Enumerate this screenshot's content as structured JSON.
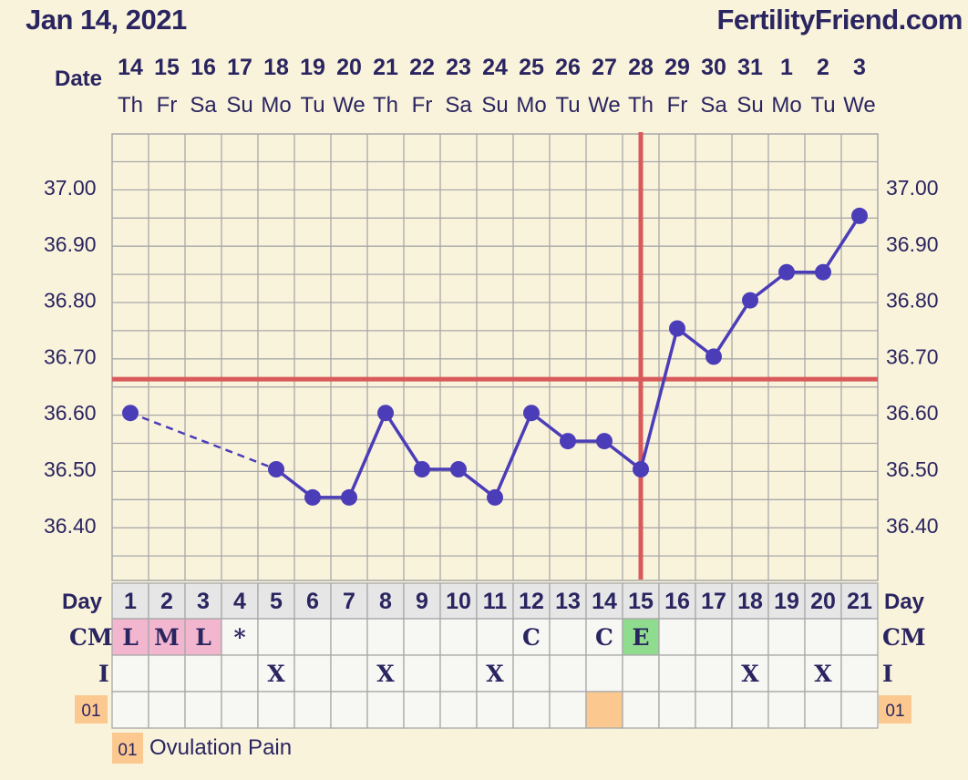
{
  "header": {
    "title": "Jan 14, 2021",
    "brand": "FertilityFriend.com"
  },
  "labels": {
    "date": "Date",
    "day": "Day",
    "cm": "CM",
    "intercourse": "I",
    "custom_code": "01"
  },
  "legend": {
    "code": "01",
    "label": "Ovulation Pain"
  },
  "colors": {
    "background": "#faf3dc",
    "grid": "#a8a8a8",
    "line": "#4b3db8",
    "coverline": "#d85a5a",
    "menstrual_cell": "#f2b6cf",
    "fertile_cell": "#8fdc8f",
    "custom_cell": "#fbc990",
    "day_row": "#e6e6e6",
    "cell_bg": "#f7f7f4"
  },
  "chart_data": {
    "type": "line",
    "title": "",
    "xlabel": "",
    "ylabel": "",
    "ylim": [
      36.32,
      37.1
    ],
    "yticks": [
      "37.00",
      "36.90",
      "36.80",
      "36.70",
      "36.60",
      "36.50",
      "36.40"
    ],
    "dates": [
      "14",
      "15",
      "16",
      "17",
      "18",
      "19",
      "20",
      "21",
      "22",
      "23",
      "24",
      "25",
      "26",
      "27",
      "28",
      "29",
      "30",
      "31",
      "1",
      "2",
      "3"
    ],
    "weekdays": [
      "Th",
      "Fr",
      "Sa",
      "Su",
      "Mo",
      "Tu",
      "We",
      "Th",
      "Fr",
      "Sa",
      "Su",
      "Mo",
      "Tu",
      "We",
      "Th",
      "Fr",
      "Sa",
      "Su",
      "Mo",
      "Tu",
      "We"
    ],
    "cycle_days": [
      "1",
      "2",
      "3",
      "4",
      "5",
      "6",
      "7",
      "8",
      "9",
      "10",
      "11",
      "12",
      "13",
      "14",
      "15",
      "16",
      "17",
      "18",
      "19",
      "20",
      "21"
    ],
    "series": [
      {
        "values": [
          36.6,
          null,
          null,
          null,
          36.5,
          36.45,
          36.45,
          36.6,
          36.5,
          36.5,
          36.45,
          36.6,
          36.55,
          36.55,
          36.5,
          36.75,
          36.7,
          36.8,
          36.85,
          36.85,
          36.95
        ]
      }
    ],
    "coverline": 36.66,
    "ovulation_day": 15,
    "cm": [
      "L",
      "M",
      "L",
      "*",
      "",
      "",
      "",
      "",
      "",
      "",
      "",
      "C",
      "",
      "C",
      "E",
      "",
      "",
      "",
      "",
      "",
      ""
    ],
    "intercourse": [
      "",
      "",
      "",
      "",
      "X",
      "",
      "",
      "X",
      "",
      "",
      "X",
      "",
      "",
      "",
      "",
      "",
      "",
      "X",
      "",
      "X",
      ""
    ],
    "custom_01": [
      false,
      false,
      false,
      false,
      false,
      false,
      false,
      false,
      false,
      false,
      false,
      false,
      false,
      true,
      false,
      false,
      false,
      false,
      false,
      false,
      false
    ]
  }
}
